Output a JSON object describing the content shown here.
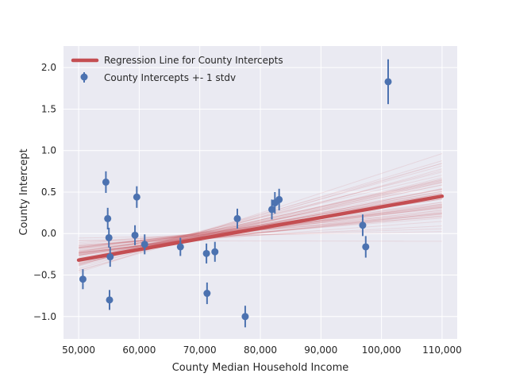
{
  "chart_data": {
    "type": "scatter",
    "xlabel": "County Median Household Income",
    "ylabel": "County Intercept",
    "xlim": [
      47500,
      112500
    ],
    "ylim": [
      -1.27,
      2.26
    ],
    "x_ticks": [
      50000,
      60000,
      70000,
      80000,
      90000,
      100000,
      110000
    ],
    "x_tick_labels": [
      "50,000",
      "60,000",
      "70,000",
      "80,000",
      "90,000",
      "100,000",
      "110,000"
    ],
    "y_ticks": [
      -1.0,
      -0.5,
      0.0,
      0.5,
      1.0,
      1.5,
      2.0
    ],
    "y_tick_labels": [
      "−1.0",
      "−0.5",
      "0.0",
      "0.5",
      "1.0",
      "1.5",
      "2.0"
    ],
    "grid": true,
    "legend_position": "top-left",
    "legend": {
      "line_label": "Regression Line for County Intercepts",
      "points_label": "County Intercepts +- 1 stdv"
    },
    "colors": {
      "points": "#4c72b0",
      "regression": "#c44e52",
      "background": "#eaeaf2",
      "grid": "#ffffff"
    },
    "regression_line": {
      "x": [
        50000,
        110000
      ],
      "y": [
        -0.32,
        0.45
      ]
    },
    "posterior_samples": {
      "pivot_x": 68000,
      "pivot_y": -0.05,
      "count": 70,
      "x_range": [
        50000,
        110000
      ]
    },
    "points": [
      {
        "x": 50700,
        "y": -0.55,
        "err": 0.12
      },
      {
        "x": 54500,
        "y": 0.62,
        "err": 0.13
      },
      {
        "x": 54800,
        "y": 0.18,
        "err": 0.13
      },
      {
        "x": 55000,
        "y": -0.05,
        "err": 0.12
      },
      {
        "x": 55100,
        "y": -0.8,
        "err": 0.12
      },
      {
        "x": 55200,
        "y": -0.28,
        "err": 0.12
      },
      {
        "x": 59300,
        "y": -0.02,
        "err": 0.12
      },
      {
        "x": 59600,
        "y": 0.44,
        "err": 0.13
      },
      {
        "x": 60900,
        "y": -0.13,
        "err": 0.12
      },
      {
        "x": 66800,
        "y": -0.16,
        "err": 0.11
      },
      {
        "x": 71100,
        "y": -0.24,
        "err": 0.12
      },
      {
        "x": 71200,
        "y": -0.72,
        "err": 0.13
      },
      {
        "x": 72500,
        "y": -0.22,
        "err": 0.12
      },
      {
        "x": 76200,
        "y": 0.18,
        "err": 0.12
      },
      {
        "x": 77500,
        "y": -1.0,
        "err": 0.13
      },
      {
        "x": 81900,
        "y": 0.29,
        "err": 0.12
      },
      {
        "x": 82400,
        "y": 0.37,
        "err": 0.13
      },
      {
        "x": 83100,
        "y": 0.41,
        "err": 0.13
      },
      {
        "x": 96900,
        "y": 0.1,
        "err": 0.13
      },
      {
        "x": 97400,
        "y": -0.16,
        "err": 0.13
      },
      {
        "x": 101100,
        "y": 1.83,
        "err": 0.27
      }
    ]
  }
}
